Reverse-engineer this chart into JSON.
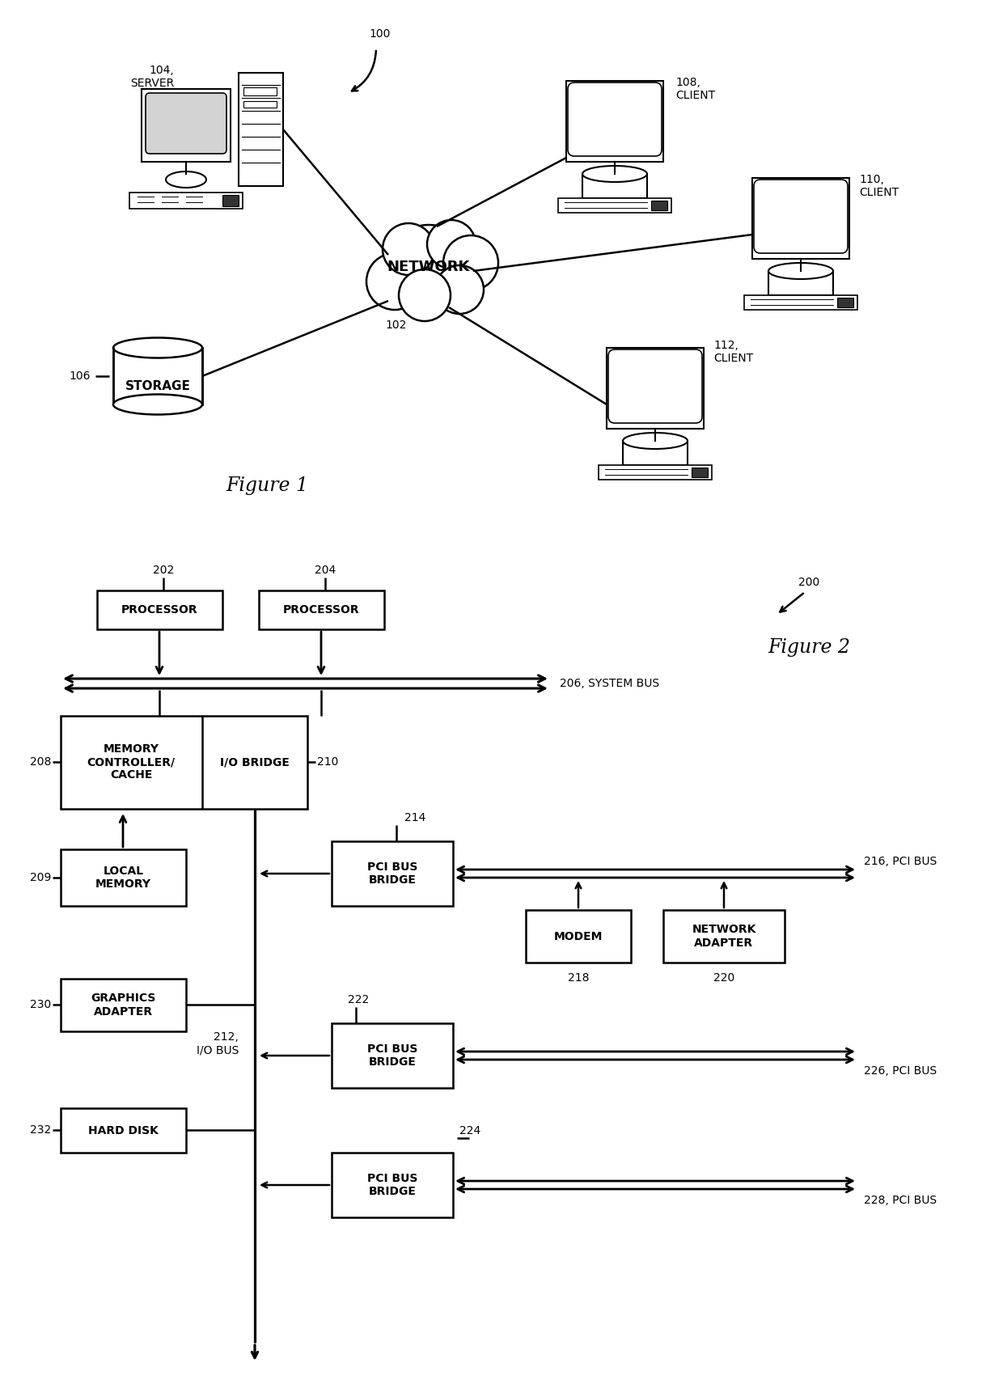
{
  "bg_color": "#ffffff",
  "fig1": {
    "title": "Figure 1",
    "label_100": "100",
    "label_102": "102",
    "label_104": "104,\nSERVER",
    "label_106": "106",
    "label_108": "108,\nCLIENT",
    "label_110": "110,\nCLIENT",
    "label_112": "112,\nCLIENT",
    "network_label": "NETWORK",
    "storage_label": "STORAGE"
  },
  "fig2": {
    "title": "Figure 2",
    "label_200": "200",
    "label_202": "202",
    "label_204": "204",
    "label_206": "206, SYSTEM BUS",
    "label_208": "208",
    "label_209": "209",
    "label_210": "210",
    "label_212": "212,\nI/O BUS",
    "label_214": "214",
    "label_216": "216, PCI BUS",
    "label_218": "218",
    "label_220": "220",
    "label_222": "222",
    "label_224": "224",
    "label_226": "226, PCI BUS",
    "label_228": "228, PCI BUS",
    "label_230": "230",
    "label_232": "232",
    "proc1_label": "PROCESSOR",
    "proc2_label": "PROCESSOR",
    "mem_ctrl_label": "MEMORY\nCONTROLLER/\nCACHE",
    "io_bridge_label": "I/O BRIDGE",
    "local_mem_label": "LOCAL\nMEMORY",
    "graphics_label": "GRAPHICS\nADAPTER",
    "hard_disk_label": "HARD DISK",
    "pci_bridge1_label": "PCI BUS\nBRIDGE",
    "pci_bridge2_label": "PCI BUS\nBRIDGE",
    "pci_bridge3_label": "PCI BUS\nBRIDGE",
    "modem_label": "MODEM",
    "network_adapter_label": "NETWORK\nADAPTER"
  }
}
